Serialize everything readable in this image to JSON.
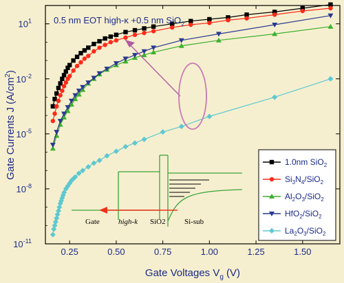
{
  "chart_data": {
    "type": "line",
    "xlabel": "Gate Voltages V",
    "xlabel_sub": "g",
    "xlabel_unit": " (V)",
    "ylabel": "Gate Currents J (A/cm",
    "ylabel_sup": "2",
    "ylabel_end": ")",
    "xlim": [
      0.12,
      1.7
    ],
    "ylim_log10": [
      -11,
      2
    ],
    "y_scale": "log",
    "x_ticks": [
      "0.25",
      "0.50",
      "0.75",
      "1.00",
      "1.25",
      "1.50"
    ],
    "x_tick_values": [
      0.25,
      0.5,
      0.75,
      1.0,
      1.25,
      1.5
    ],
    "y_ticks": [
      {
        "base": "10",
        "exp": "1",
        "value": 1
      },
      {
        "base": "10",
        "exp": "-2",
        "value": -2
      },
      {
        "base": "10",
        "exp": "-5",
        "value": -5
      },
      {
        "base": "10",
        "exp": "-8",
        "value": -8
      },
      {
        "base": "10",
        "exp": "-11",
        "value": -11
      }
    ],
    "annotation": {
      "prefix": "0.5 nm EOT high-κ +0.5 nm SiO",
      "sub": "2"
    },
    "series": [
      {
        "name": "1.0nm SiO2",
        "label_parts": [
          [
            "1.0nm SiO",
            false
          ],
          [
            "2",
            true
          ]
        ],
        "color": "#000000",
        "marker": "square",
        "x": [
          0.16,
          0.17,
          0.18,
          0.19,
          0.2,
          0.21,
          0.22,
          0.23,
          0.24,
          0.25,
          0.27,
          0.29,
          0.31,
          0.33,
          0.35,
          0.38,
          0.41,
          0.44,
          0.47,
          0.5,
          0.55,
          0.6,
          0.65,
          0.7,
          0.8,
          0.9,
          1.0,
          1.1,
          1.2,
          1.35,
          1.5,
          1.65
        ],
        "log10y": [
          -3.5,
          -3.1,
          -2.8,
          -2.5,
          -2.25,
          -2.0,
          -1.8,
          -1.6,
          -1.4,
          -1.25,
          -1.0,
          -0.8,
          -0.6,
          -0.45,
          -0.3,
          -0.1,
          0.05,
          0.2,
          0.3,
          0.4,
          0.55,
          0.65,
          0.75,
          0.85,
          1.0,
          1.15,
          1.25,
          1.35,
          1.5,
          1.65,
          1.85,
          2.05
        ]
      },
      {
        "name": "Si3N4/SiO2",
        "label_parts": [
          [
            "Si",
            false
          ],
          [
            "3",
            true
          ],
          [
            "N",
            false
          ],
          [
            "4",
            true
          ],
          [
            "/SiO",
            false
          ],
          [
            "2",
            true
          ]
        ],
        "color": "#ff2a1a",
        "marker": "circle",
        "x": [
          0.16,
          0.17,
          0.18,
          0.19,
          0.2,
          0.21,
          0.22,
          0.23,
          0.24,
          0.25,
          0.27,
          0.29,
          0.31,
          0.33,
          0.35,
          0.38,
          0.41,
          0.44,
          0.47,
          0.5,
          0.55,
          0.6,
          0.65,
          0.7,
          0.8,
          0.9,
          1.0,
          1.1,
          1.2,
          1.35,
          1.5,
          1.65
        ],
        "log10y": [
          -4.3,
          -3.9,
          -3.5,
          -3.2,
          -2.9,
          -2.65,
          -2.4,
          -2.2,
          -2.0,
          -1.85,
          -1.55,
          -1.3,
          -1.1,
          -0.9,
          -0.75,
          -0.5,
          -0.3,
          -0.15,
          0.0,
          0.1,
          0.25,
          0.4,
          0.5,
          0.6,
          0.8,
          0.95,
          1.05,
          1.2,
          1.3,
          1.5,
          1.7,
          1.85
        ]
      },
      {
        "name": "Al2O3/SiO2",
        "label_parts": [
          [
            "Al",
            false
          ],
          [
            "2",
            true
          ],
          [
            "O",
            false
          ],
          [
            "3",
            true
          ],
          [
            "/SiO",
            false
          ],
          [
            "2",
            true
          ]
        ],
        "color": "#3cb02e",
        "marker": "triangle-up",
        "x": [
          0.16,
          0.18,
          0.2,
          0.22,
          0.24,
          0.26,
          0.28,
          0.3,
          0.32,
          0.35,
          0.38,
          0.41,
          0.45,
          0.5,
          0.55,
          0.6,
          0.65,
          0.7,
          0.85,
          1.05,
          1.35,
          1.65
        ],
        "log10y": [
          -5.8,
          -5.1,
          -4.5,
          -4.1,
          -3.75,
          -3.4,
          -3.1,
          -2.85,
          -2.6,
          -2.25,
          -2.0,
          -1.75,
          -1.5,
          -1.25,
          -1.05,
          -0.85,
          -0.7,
          -0.55,
          -0.2,
          0.1,
          0.45,
          0.85
        ]
      },
      {
        "name": "HfO2/SiO2",
        "label_parts": [
          [
            "HfO",
            false
          ],
          [
            "2",
            true
          ],
          [
            "/SiO",
            false
          ],
          [
            "2",
            true
          ]
        ],
        "color": "#2a3890",
        "marker": "triangle-down",
        "x": [
          0.16,
          0.18,
          0.2,
          0.22,
          0.24,
          0.26,
          0.28,
          0.3,
          0.32,
          0.35,
          0.38,
          0.41,
          0.45,
          0.5,
          0.55,
          0.6,
          0.65,
          0.7,
          0.85,
          1.05,
          1.35,
          1.65
        ],
        "log10y": [
          -5.6,
          -4.9,
          -4.3,
          -3.9,
          -3.55,
          -3.2,
          -2.9,
          -2.65,
          -2.45,
          -2.2,
          -1.95,
          -1.7,
          -1.45,
          -1.15,
          -0.9,
          -0.7,
          -0.5,
          -0.3,
          0.1,
          0.45,
          0.95,
          1.45
        ]
      },
      {
        "name": "La2O3/SiO2",
        "label_parts": [
          [
            "La",
            false
          ],
          [
            "2",
            true
          ],
          [
            "O",
            false
          ],
          [
            "3",
            true
          ],
          [
            "/SiO",
            false
          ],
          [
            "2",
            true
          ]
        ],
        "color": "#5ec8d0",
        "marker": "diamond",
        "x": [
          0.16,
          0.165,
          0.17,
          0.175,
          0.18,
          0.185,
          0.19,
          0.195,
          0.2,
          0.205,
          0.21,
          0.215,
          0.22,
          0.23,
          0.24,
          0.25,
          0.26,
          0.27,
          0.28,
          0.3,
          0.32,
          0.35,
          0.38,
          0.41,
          0.45,
          0.5,
          0.55,
          0.6,
          0.65,
          0.75,
          0.85,
          1.0,
          1.35,
          1.65
        ],
        "log10y": [
          -10.5,
          -10.2,
          -10.0,
          -9.8,
          -9.6,
          -9.4,
          -9.2,
          -9.0,
          -8.8,
          -8.65,
          -8.5,
          -8.35,
          -8.2,
          -8.0,
          -7.85,
          -7.7,
          -7.55,
          -7.45,
          -7.35,
          -7.15,
          -7.0,
          -6.8,
          -6.6,
          -6.45,
          -6.2,
          -5.95,
          -5.7,
          -5.5,
          -5.3,
          -4.9,
          -4.6,
          -4.05,
          -3.0,
          -2.0
        ]
      }
    ],
    "inset_labels": [
      "Gate",
      "high-k",
      "SiO2",
      "Si-sub"
    ],
    "legend_position": "bottom-right"
  }
}
